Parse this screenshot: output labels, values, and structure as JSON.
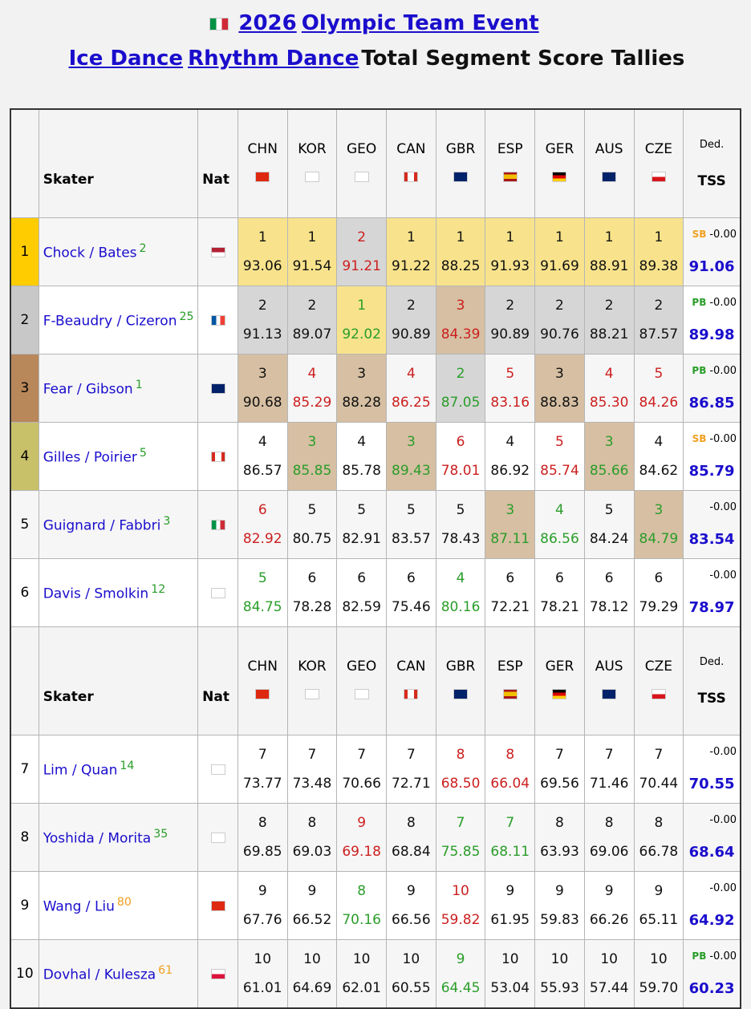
{
  "header": {
    "line1": [
      "2026",
      "Olympic Team Event"
    ],
    "line2": [
      "Ice Dance",
      "Rhythm Dance"
    ],
    "line2_text": "Total Segment Score Tallies"
  },
  "table": {
    "columns": {
      "skater": "Skater",
      "nat": "Nat",
      "judges": [
        "CHN",
        "KOR",
        "GEO",
        "CAN",
        "GBR",
        "ESP",
        "GER",
        "AUS",
        "CZE"
      ],
      "ded": "Ded.",
      "tss": "TSS"
    },
    "rows": [
      {
        "rank": "1",
        "skater": "Chock / Bates",
        "seed": "2",
        "seed_color": "#2a9d2a",
        "places": [
          "1",
          "1",
          "2",
          "1",
          "1",
          "1",
          "1",
          "1",
          "1"
        ],
        "scores": [
          "93.06",
          "91.54",
          "91.21",
          "91.22",
          "88.25",
          "91.93",
          "91.69",
          "88.91",
          "89.38"
        ],
        "badge": "SB",
        "badge_color": "#f0a020",
        "ded": "-0.00",
        "tss": "91.06"
      },
      {
        "rank": "2",
        "skater": "F-Beaudry / Cizeron",
        "seed": "25",
        "seed_color": "#2a9d2a",
        "places": [
          "2",
          "2",
          "1",
          "2",
          "3",
          "2",
          "2",
          "2",
          "2"
        ],
        "scores": [
          "91.13",
          "89.07",
          "92.02",
          "90.89",
          "84.39",
          "90.89",
          "90.76",
          "88.21",
          "87.57"
        ],
        "badge": "PB",
        "badge_color": "#2a9d2a",
        "ded": "-0.00",
        "tss": "89.98"
      },
      {
        "rank": "3",
        "skater": "Fear / Gibson",
        "seed": "1",
        "seed_color": "#2a9d2a",
        "places": [
          "3",
          "4",
          "3",
          "4",
          "2",
          "5",
          "3",
          "4",
          "5"
        ],
        "scores": [
          "90.68",
          "85.29",
          "88.28",
          "86.25",
          "87.05",
          "83.16",
          "88.83",
          "85.30",
          "84.26"
        ],
        "badge": "PB",
        "badge_color": "#2a9d2a",
        "ded": "-0.00",
        "tss": "86.85"
      },
      {
        "rank": "4",
        "skater": "Gilles / Poirier",
        "seed": "5",
        "seed_color": "#2a9d2a",
        "places": [
          "4",
          "3",
          "4",
          "3",
          "6",
          "4",
          "5",
          "3",
          "4"
        ],
        "scores": [
          "86.57",
          "85.85",
          "85.78",
          "89.43",
          "78.01",
          "86.92",
          "85.74",
          "85.66",
          "84.62"
        ],
        "badge": "SB",
        "badge_color": "#f0a020",
        "ded": "-0.00",
        "tss": "85.79"
      },
      {
        "rank": "5",
        "skater": "Guignard / Fabbri",
        "seed": "3",
        "seed_color": "#2a9d2a",
        "places": [
          "6",
          "5",
          "5",
          "5",
          "5",
          "3",
          "4",
          "5",
          "3"
        ],
        "scores": [
          "82.92",
          "80.75",
          "82.91",
          "83.57",
          "78.43",
          "87.11",
          "86.56",
          "84.24",
          "84.79"
        ],
        "ded": "-0.00",
        "tss": "83.54"
      },
      {
        "rank": "6",
        "skater": "Davis / Smolkin",
        "seed": "12",
        "seed_color": "#2a9d2a",
        "places": [
          "5",
          "6",
          "6",
          "6",
          "4",
          "6",
          "6",
          "6",
          "6"
        ],
        "scores": [
          "84.75",
          "78.28",
          "82.59",
          "75.46",
          "80.16",
          "72.21",
          "78.21",
          "78.12",
          "79.29"
        ],
        "ded": "-0.00",
        "tss": "78.97"
      },
      {
        "rank": "7",
        "skater": "Lim / Quan",
        "seed": "14",
        "seed_color": "#2a9d2a",
        "places": [
          "7",
          "7",
          "7",
          "7",
          "8",
          "8",
          "7",
          "7",
          "7"
        ],
        "scores": [
          "73.77",
          "73.48",
          "70.66",
          "72.71",
          "68.50",
          "66.04",
          "69.56",
          "71.46",
          "70.44"
        ],
        "ded": "-0.00",
        "tss": "70.55"
      },
      {
        "rank": "8",
        "skater": "Yoshida / Morita",
        "seed": "35",
        "seed_color": "#2a9d2a",
        "places": [
          "8",
          "8",
          "9",
          "8",
          "7",
          "7",
          "8",
          "8",
          "8"
        ],
        "scores": [
          "69.85",
          "69.03",
          "69.18",
          "68.84",
          "75.85",
          "68.11",
          "63.93",
          "69.06",
          "66.78"
        ],
        "ded": "-0.00",
        "tss": "68.64"
      },
      {
        "rank": "9",
        "skater": "Wang / Liu",
        "seed": "80",
        "seed_color": "#f0a020",
        "places": [
          "9",
          "9",
          "8",
          "9",
          "10",
          "9",
          "9",
          "9",
          "9"
        ],
        "scores": [
          "67.76",
          "66.52",
          "70.16",
          "66.56",
          "59.82",
          "61.95",
          "59.83",
          "66.26",
          "65.11"
        ],
        "ded": "-0.00",
        "tss": "64.92"
      },
      {
        "rank": "10",
        "skater": "Dovhal / Kulesza",
        "seed": "61",
        "seed_color": "#f0a020",
        "places": [
          "10",
          "10",
          "10",
          "10",
          "9",
          "10",
          "10",
          "10",
          "10"
        ],
        "scores": [
          "61.01",
          "64.69",
          "62.01",
          "60.55",
          "64.45",
          "53.04",
          "55.93",
          "57.44",
          "59.70"
        ],
        "badge": "PB",
        "badge_color": "#2a9d2a",
        "ded": "-0.00",
        "tss": "60.23"
      }
    ]
  }
}
